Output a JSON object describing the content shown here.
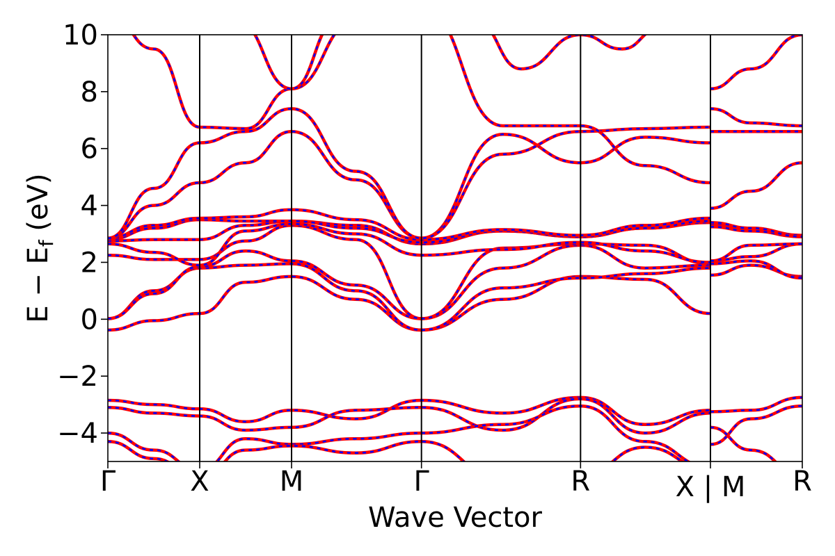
{
  "chart_data": {
    "type": "line",
    "title": "",
    "xlabel": "Wave Vector",
    "ylabel": "E − E",
    "ylabel_sub": "f",
    "ylabel_unit": " (eV)",
    "ylim": [
      -5,
      10
    ],
    "yticks": [
      -4,
      -2,
      0,
      2,
      4,
      6,
      8,
      10
    ],
    "ytick_labels": [
      "−4",
      "−2",
      "0",
      "2",
      "4",
      "6",
      "8",
      "10"
    ],
    "xlim": [
      0,
      7.5
    ],
    "kpoints": [
      {
        "x": 0.0,
        "label": "Γ"
      },
      {
        "x": 1.0,
        "label": "X"
      },
      {
        "x": 2.0,
        "label": "M"
      },
      {
        "x": 3.4142,
        "label": "Γ"
      },
      {
        "x": 5.1463,
        "label": "R"
      },
      {
        "x": 6.5605,
        "label": "X"
      },
      {
        "x": 7.5605,
        "label": "R"
      }
    ],
    "discontinuity": {
      "x": 6.5605,
      "label": "X | M"
    },
    "styles": {
      "series_a": {
        "color": "#ff0000",
        "style": "solid"
      },
      "series_b": {
        "color": "#0000ff",
        "style": "dashed"
      }
    },
    "bands": [
      [
        [
          0,
          -0.38
        ],
        [
          0.5,
          -0.05
        ],
        [
          1.0,
          0.2
        ],
        [
          1.5,
          1.3
        ],
        [
          2.0,
          1.5
        ],
        [
          2.7,
          0.7
        ],
        [
          3.4142,
          -0.38
        ],
        [
          4.3,
          0.7
        ],
        [
          5.1463,
          1.5
        ],
        [
          5.85,
          1.4
        ],
        [
          6.5605,
          0.2
        ],
        [
          6.5605,
          1.55
        ],
        [
          7.0,
          1.9
        ],
        [
          7.5605,
          1.5
        ]
      ],
      [
        [
          0,
          0.02
        ],
        [
          0.5,
          1.0
        ],
        [
          1.0,
          1.8
        ],
        [
          1.5,
          1.9
        ],
        [
          2.0,
          1.95
        ],
        [
          2.7,
          1.0
        ],
        [
          3.4142,
          -0.38
        ],
        [
          4.3,
          1.1
        ],
        [
          5.1463,
          1.45
        ],
        [
          5.85,
          1.6
        ],
        [
          6.5605,
          1.8
        ],
        [
          6.5605,
          1.95
        ],
        [
          7.0,
          2.05
        ],
        [
          7.5605,
          1.45
        ]
      ],
      [
        [
          0,
          0.02
        ],
        [
          0.5,
          0.9
        ],
        [
          1.0,
          1.85
        ],
        [
          1.5,
          2.4
        ],
        [
          2.0,
          2.05
        ],
        [
          2.7,
          1.2
        ],
        [
          3.4142,
          0.02
        ],
        [
          4.3,
          1.8
        ],
        [
          5.1463,
          2.6
        ],
        [
          5.85,
          1.8
        ],
        [
          6.5605,
          1.9
        ],
        [
          6.5605,
          2.05
        ],
        [
          7.0,
          2.2
        ],
        [
          7.5605,
          2.65
        ]
      ],
      [
        [
          0,
          2.25
        ],
        [
          0.5,
          2.1
        ],
        [
          1.0,
          2.1
        ],
        [
          1.5,
          2.75
        ],
        [
          2.0,
          3.3
        ],
        [
          2.7,
          2.8
        ],
        [
          3.4142,
          0.02
        ],
        [
          4.3,
          2.5
        ],
        [
          5.1463,
          2.65
        ],
        [
          5.85,
          2.6
        ],
        [
          6.5605,
          1.95
        ],
        [
          6.5605,
          2.05
        ],
        [
          7.0,
          2.6
        ],
        [
          7.5605,
          2.65
        ]
      ],
      [
        [
          0,
          2.65
        ],
        [
          0.5,
          2.35
        ],
        [
          1.0,
          1.9
        ],
        [
          1.5,
          3.1
        ],
        [
          2.0,
          3.35
        ],
        [
          2.7,
          3.0
        ],
        [
          3.4142,
          2.25
        ],
        [
          4.3,
          2.45
        ],
        [
          5.1463,
          2.7
        ],
        [
          5.85,
          2.4
        ],
        [
          6.5605,
          2.0
        ],
        [
          6.5605,
          3.25
        ],
        [
          7.0,
          3.1
        ],
        [
          7.5605,
          2.9
        ]
      ],
      [
        [
          0,
          2.75
        ],
        [
          0.5,
          2.8
        ],
        [
          1.0,
          2.8
        ],
        [
          1.5,
          3.3
        ],
        [
          2.0,
          3.45
        ],
        [
          2.7,
          3.3
        ],
        [
          3.4142,
          2.65
        ],
        [
          4.3,
          3.1
        ],
        [
          5.1463,
          2.9
        ],
        [
          5.85,
          3.2
        ],
        [
          6.5605,
          3.4
        ],
        [
          6.5605,
          3.35
        ],
        [
          7.0,
          3.2
        ],
        [
          7.5605,
          2.95
        ]
      ],
      [
        [
          0,
          2.8
        ],
        [
          0.5,
          3.2
        ],
        [
          1.0,
          3.5
        ],
        [
          1.5,
          3.45
        ],
        [
          2.0,
          3.45
        ],
        [
          2.7,
          3.2
        ],
        [
          3.4142,
          2.7
        ],
        [
          4.3,
          3.1
        ],
        [
          5.1463,
          2.9
        ],
        [
          5.85,
          3.2
        ],
        [
          6.5605,
          3.45
        ],
        [
          6.5605,
          3.4
        ],
        [
          7.0,
          3.2
        ],
        [
          7.5605,
          2.9
        ]
      ],
      [
        [
          0,
          2.85
        ],
        [
          0.5,
          3.3
        ],
        [
          1.0,
          3.55
        ],
        [
          1.5,
          3.6
        ],
        [
          2.0,
          3.85
        ],
        [
          2.7,
          3.5
        ],
        [
          3.4142,
          2.8
        ],
        [
          4.3,
          3.15
        ],
        [
          5.1463,
          2.95
        ],
        [
          5.85,
          3.3
        ],
        [
          6.5605,
          3.55
        ],
        [
          6.5605,
          3.9
        ],
        [
          7.0,
          4.5
        ],
        [
          7.5605,
          5.5
        ]
      ],
      [
        [
          0,
          2.85
        ],
        [
          0.5,
          4.0
        ],
        [
          1.0,
          4.8
        ],
        [
          1.5,
          5.5
        ],
        [
          2.0,
          6.6
        ],
        [
          2.7,
          4.9
        ],
        [
          3.4142,
          2.85
        ],
        [
          4.3,
          6.5
        ],
        [
          5.1463,
          5.5
        ],
        [
          5.85,
          6.4
        ],
        [
          6.5605,
          6.2
        ],
        [
          6.5605,
          6.6
        ],
        [
          7.0,
          6.6
        ],
        [
          7.5605,
          6.6
        ]
      ],
      [
        [
          0,
          2.85
        ],
        [
          0.5,
          4.6
        ],
        [
          1.0,
          6.2
        ],
        [
          1.5,
          6.6
        ],
        [
          2.0,
          7.4
        ],
        [
          2.7,
          5.2
        ],
        [
          3.4142,
          2.85
        ],
        [
          4.3,
          5.8
        ],
        [
          5.1463,
          6.6
        ],
        [
          5.85,
          6.7
        ],
        [
          6.5605,
          6.75
        ],
        [
          6.5605,
          7.4
        ],
        [
          7.0,
          6.9
        ],
        [
          7.5605,
          6.8
        ]
      ],
      [
        [
          0,
          10.8
        ],
        [
          0.5,
          9.5
        ],
        [
          1.0,
          6.75
        ],
        [
          1.5,
          6.7
        ],
        [
          2.0,
          8.1
        ],
        [
          2.7,
          10.5
        ],
        [
          3.4142,
          11.0
        ],
        [
          4.3,
          6.8
        ],
        [
          5.1463,
          6.8
        ],
        [
          5.85,
          5.4
        ],
        [
          6.5605,
          4.8
        ],
        [
          6.5605,
          8.1
        ],
        [
          7.0,
          8.8
        ],
        [
          7.5605,
          10.0
        ]
      ],
      [
        [
          0,
          11.5
        ],
        [
          1.0,
          11.0
        ],
        [
          1.4,
          10.5
        ],
        [
          2.0,
          8.1
        ],
        [
          2.5,
          10.5
        ],
        [
          3.0,
          11.5
        ],
        [
          3.4142,
          12.0
        ],
        [
          4.0,
          10.5
        ],
        [
          4.5,
          8.8
        ],
        [
          5.1463,
          10.0
        ],
        [
          5.6,
          9.5
        ],
        [
          6.0,
          10.2
        ],
        [
          6.5605,
          11.0
        ]
      ],
      [
        [
          0,
          -2.85
        ],
        [
          0.5,
          -3.0
        ],
        [
          1.0,
          -3.15
        ],
        [
          1.5,
          -3.6
        ],
        [
          2.0,
          -3.2
        ],
        [
          2.7,
          -3.5
        ],
        [
          3.4142,
          -2.85
        ],
        [
          4.3,
          -3.3
        ],
        [
          5.1463,
          -2.75
        ],
        [
          5.85,
          -3.7
        ],
        [
          6.5605,
          -3.2
        ],
        [
          6.5605,
          -3.25
        ],
        [
          7.0,
          -3.2
        ],
        [
          7.5605,
          -2.75
        ]
      ],
      [
        [
          0,
          -3.1
        ],
        [
          0.5,
          -3.3
        ],
        [
          1.0,
          -3.4
        ],
        [
          1.5,
          -3.9
        ],
        [
          2.0,
          -3.8
        ],
        [
          2.7,
          -3.2
        ],
        [
          3.4142,
          -3.1
        ],
        [
          4.3,
          -3.9
        ],
        [
          5.1463,
          -2.8
        ],
        [
          5.85,
          -4.0
        ],
        [
          6.5605,
          -3.3
        ],
        [
          6.5605,
          -4.4
        ],
        [
          7.0,
          -3.5
        ],
        [
          7.5605,
          -3.05
        ]
      ],
      [
        [
          0,
          -4.0
        ],
        [
          0.5,
          -4.6
        ],
        [
          1.0,
          -5.3
        ],
        [
          1.5,
          -4.2
        ],
        [
          2.0,
          -4.4
        ],
        [
          2.7,
          -4.2
        ],
        [
          3.4142,
          -4.0
        ],
        [
          4.3,
          -3.7
        ],
        [
          5.1463,
          -3.05
        ],
        [
          5.85,
          -4.3
        ],
        [
          6.5605,
          -5.2
        ],
        [
          6.5605,
          -3.8
        ],
        [
          7.0,
          -4.6
        ],
        [
          7.5605,
          -5.5
        ]
      ],
      [
        [
          0,
          -4.3
        ],
        [
          0.5,
          -4.9
        ],
        [
          1.0,
          -5.6
        ],
        [
          1.5,
          -4.6
        ],
        [
          2.0,
          -4.45
        ],
        [
          2.7,
          -4.7
        ],
        [
          3.4142,
          -4.3
        ],
        [
          4.3,
          -5.6
        ],
        [
          5.1463,
          -5.5
        ],
        [
          5.85,
          -4.5
        ],
        [
          6.5605,
          -5.3
        ],
        [
          6.5605,
          -5.5
        ],
        [
          7.0,
          -5.5
        ],
        [
          7.5605,
          -5.5
        ]
      ]
    ]
  }
}
